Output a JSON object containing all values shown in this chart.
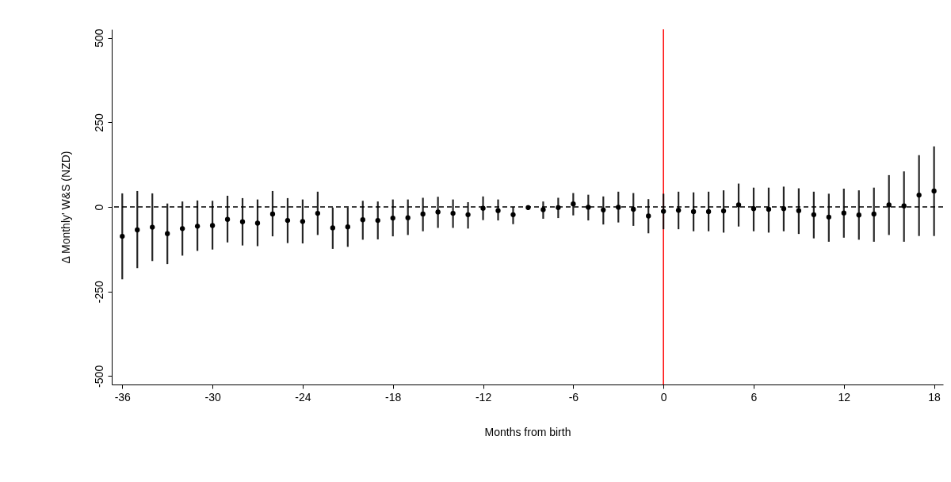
{
  "chart_data": {
    "type": "scatter",
    "xlabel": "Months from birth",
    "ylabel": "Δ Monthly' W&S (NZD)",
    "marker": "circle",
    "color": "#000000",
    "x": [
      -36,
      -35,
      -34,
      -33,
      -32,
      -31,
      -30,
      -29,
      -28,
      -27,
      -26,
      -25,
      -24,
      -23,
      -22,
      -21,
      -20,
      -19,
      -18,
      -17,
      -16,
      -15,
      -14,
      -13,
      -12,
      -11,
      -10,
      -9,
      -8,
      -7,
      -6,
      -5,
      -4,
      -3,
      -2,
      -1,
      0,
      1,
      2,
      3,
      4,
      5,
      6,
      7,
      8,
      9,
      10,
      11,
      12,
      13,
      14,
      15,
      16,
      17,
      18
    ],
    "values": [
      -87,
      -68,
      -60,
      -79,
      -64,
      -57,
      -55,
      -37,
      -44,
      -48,
      -21,
      -40,
      -43,
      -19,
      -62,
      -59,
      -38,
      -40,
      -33,
      -32,
      -21,
      -15,
      -19,
      -23,
      -4,
      -11,
      -23,
      -2,
      -8,
      -2,
      9,
      -1,
      -9,
      -1,
      -7,
      -27,
      -13,
      -10,
      -14,
      -14,
      -12,
      6,
      -5,
      -7,
      -5,
      -11,
      -23,
      -30,
      -18,
      -24,
      -21,
      6,
      3,
      35,
      47
    ],
    "errors": [
      [
        -214,
        40
      ],
      [
        -181,
        47
      ],
      [
        -160,
        40
      ],
      [
        -169,
        10
      ],
      [
        -144,
        16
      ],
      [
        -130,
        19
      ],
      [
        -126,
        18
      ],
      [
        -105,
        33
      ],
      [
        -114,
        26
      ],
      [
        -116,
        22
      ],
      [
        -87,
        47
      ],
      [
        -107,
        26
      ],
      [
        -108,
        22
      ],
      [
        -83,
        45
      ],
      [
        -124,
        -2
      ],
      [
        -118,
        -2
      ],
      [
        -97,
        18
      ],
      [
        -96,
        16
      ],
      [
        -87,
        22
      ],
      [
        -83,
        22
      ],
      [
        -72,
        27
      ],
      [
        -62,
        30
      ],
      [
        -62,
        22
      ],
      [
        -64,
        14
      ],
      [
        -39,
        31
      ],
      [
        -40,
        22
      ],
      [
        -51,
        0
      ],
      [
        -9,
        5
      ],
      [
        -35,
        16
      ],
      [
        -33,
        27
      ],
      [
        -25,
        41
      ],
      [
        -40,
        36
      ],
      [
        -52,
        31
      ],
      [
        -46,
        45
      ],
      [
        -56,
        41
      ],
      [
        -78,
        23
      ],
      [
        -66,
        39
      ],
      [
        -66,
        45
      ],
      [
        -72,
        43
      ],
      [
        -72,
        45
      ],
      [
        -76,
        49
      ],
      [
        -58,
        69
      ],
      [
        -72,
        57
      ],
      [
        -76,
        57
      ],
      [
        -72,
        60
      ],
      [
        -80,
        55
      ],
      [
        -93,
        45
      ],
      [
        -103,
        39
      ],
      [
        -91,
        54
      ],
      [
        -97,
        49
      ],
      [
        -103,
        57
      ],
      [
        -83,
        94
      ],
      [
        -103,
        105
      ],
      [
        -86,
        153
      ],
      [
        -86,
        179
      ]
    ],
    "xlim": [
      -36.7,
      18.6
    ],
    "ylim": [
      -525,
      525
    ],
    "xticks": [
      -36,
      -30,
      -24,
      -18,
      -12,
      -6,
      0,
      6,
      12,
      18
    ],
    "yticks": [
      -500,
      -250,
      0,
      250,
      500
    ],
    "ref_lines": [
      {
        "axis": "x",
        "value": 0,
        "color": "#ff0000",
        "line_style": "solid"
      },
      {
        "axis": "y",
        "value": 0,
        "color": "#000000",
        "line_style": "dashed"
      }
    ]
  }
}
